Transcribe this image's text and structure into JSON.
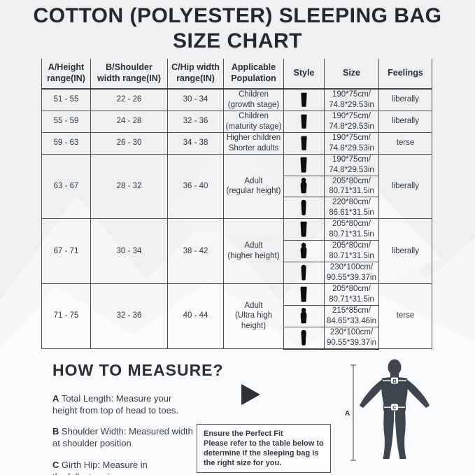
{
  "title": {
    "line1": "COTTON (POLYESTER) SLEEPING BAG",
    "line2": "SIZE CHART"
  },
  "table": {
    "headers": [
      "A/Height\nrange(IN)",
      "B/Shoulder\nwidth range(IN)",
      "C/Hip width\nrange(IN)",
      "Applicable\nPopulation",
      "Style",
      "Size",
      "Feelings"
    ],
    "rows": [
      {
        "height": "51 - 55",
        "shoulder": "22 - 26",
        "hip": "30 - 34",
        "population": "Children\n(growth stage)",
        "feeling": "liberally",
        "subs": [
          {
            "style_icon": "envelope",
            "size": "190*75cm/\n74.8*29.53in"
          }
        ]
      },
      {
        "height": "55 - 59",
        "shoulder": "24 - 28",
        "hip": "32 - 36",
        "population": "Children\n(maturity stage)",
        "feeling": "liberally",
        "subs": [
          {
            "style_icon": "envelope",
            "size": "190*75cm/\n74.8*29.53in"
          }
        ]
      },
      {
        "height": "59 - 63",
        "shoulder": "26 - 30",
        "hip": "34 - 38",
        "population": "Higher children\nShorter adults",
        "feeling": "terse",
        "subs": [
          {
            "style_icon": "envelope",
            "size": "190*75cm/\n74.8*29.53in"
          }
        ]
      },
      {
        "height": "63 - 67",
        "shoulder": "28 - 32",
        "hip": "36 - 40",
        "population": "Adult\n(regular height)",
        "feeling": "liberally",
        "subs": [
          {
            "style_icon": "envelope",
            "size": "190*75cm/\n74.8*29.53in"
          },
          {
            "style_icon": "mummy",
            "size": "205*80cm/\n80.71*31.5in"
          },
          {
            "style_icon": "bullet",
            "size": "220*80cm/\n86.61*31.5in"
          }
        ]
      },
      {
        "height": "67 - 71",
        "shoulder": "30 - 34",
        "hip": "38 - 42",
        "population": "Adult\n(higher height)",
        "feeling": "liberally",
        "subs": [
          {
            "style_icon": "envelope",
            "size": "205*80cm/\n80.71*31.5in"
          },
          {
            "style_icon": "mummy",
            "size": "205*80cm/\n80.71*31.5in"
          },
          {
            "style_icon": "bullet",
            "size": "230*100cm/\n90.55*39.37in"
          }
        ]
      },
      {
        "height": "71 - 75",
        "shoulder": "32 - 36",
        "hip": "40 - 44",
        "population": "Adult\n(Ultra high height)",
        "feeling": "terse",
        "subs": [
          {
            "style_icon": "envelope",
            "size": "205*80cm/\n80.71*31.5in"
          },
          {
            "style_icon": "mummy",
            "size": "215*85cm/\n84.65*33.46in"
          },
          {
            "style_icon": "bullet",
            "size": "230*100cm/\n90.55*39.37in"
          }
        ]
      }
    ]
  },
  "how": {
    "title": "HOW TO MEASURE?",
    "items": [
      {
        "letter": "A",
        "text": "Total Length: Measure your\nheight from top of head to toes."
      },
      {
        "letter": "B",
        "text": "Shoulder Width: Measured width\nat shoulder position"
      },
      {
        "letter": "C",
        "text": "Girth Hip: Measure in\nthe fullest part."
      }
    ]
  },
  "note": {
    "lines": [
      "Ensure the Perfect Fit",
      "Please refer to the table below to",
      "determine if the sleeping bag is",
      "the right size for you."
    ]
  },
  "figure": {
    "labels": {
      "a": "A",
      "b": "B",
      "c": "C"
    }
  },
  "colors": {
    "background": "#eef0f2",
    "text": "#2e3338",
    "table_line": "#4a4d50",
    "icon_black": "#0c0d0e",
    "figure_body": "#3d464e"
  }
}
